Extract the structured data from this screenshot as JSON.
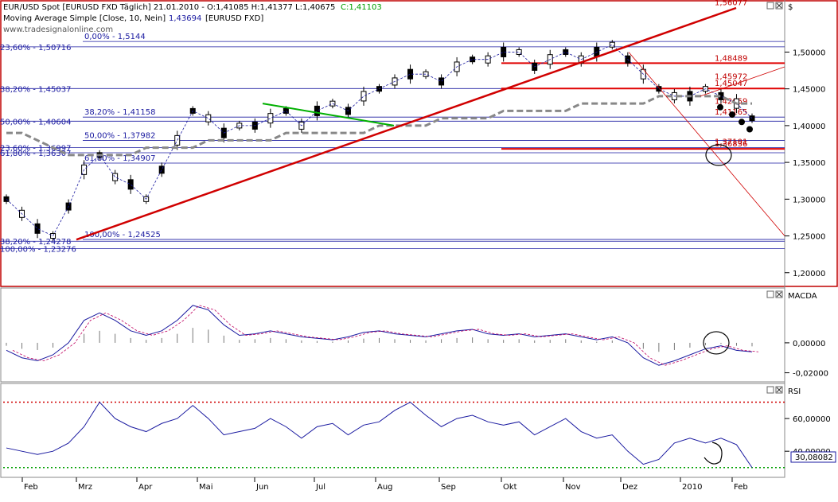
{
  "header": {
    "symbol_line": "EUR/USD Spot [EURUSD FXD  Täglich] 21.01.2010 - O:1,41085 H:1,41377 L:1,40675",
    "close_text": "C:1,41103",
    "ma_line": "Moving Average Simple [Close, 10, Nein]",
    "ma_value": "1,43694",
    "ma_symbol": "[EURUSD FXD]",
    "watermark": "www.tradesignalonline.com"
  },
  "price_axis": {
    "currency": "$",
    "ticks": [
      "1,50000",
      "1,45000",
      "1,40000",
      "1,35000",
      "1,30000",
      "1,25000",
      "1,20000"
    ]
  },
  "fib_left": [
    {
      "label": "23,60% - 1,50716",
      "y": 1.50716
    },
    {
      "label": "38,20% - 1,45037",
      "y": 1.45037
    },
    {
      "label": "50,00% - 1,40604",
      "y": 1.40604
    },
    {
      "label": "23,60% - 1,36997",
      "y": 1.36997
    },
    {
      "label": "61,80% - 1,36307",
      "y": 1.36307
    },
    {
      "label": "38,20% - 1,24278",
      "y": 1.24278
    },
    {
      "label": "100,00% - 1,23276",
      "y": 1.23276
    }
  ],
  "fib_mid": [
    {
      "label": "0,00% - 1,5144",
      "y": 1.5144
    },
    {
      "label": "38,20% - 1,41158",
      "y": 1.41158
    },
    {
      "label": "50,00% - 1,37982",
      "y": 1.37982
    },
    {
      "label": "61,80% - 1,34907",
      "y": 1.34907
    },
    {
      "label": "100,00% - 1,24525",
      "y": 1.24525
    }
  ],
  "fib_right": [
    {
      "label": "1,56077",
      "y": 1.56077
    },
    {
      "label": "1,48489",
      "y": 1.48489
    },
    {
      "label": "1,45972",
      "y": 1.45972
    },
    {
      "label": "1,45047",
      "y": 1.45047
    },
    {
      "label": "1,42659",
      "y": 1.42659
    },
    {
      "label": "1,41165",
      "y": 1.41165
    },
    {
      "label": "1,36836",
      "y": 1.36836
    },
    {
      "label": "1,37101",
      "y": 1.37101
    }
  ],
  "chart_data": [
    {
      "type": "line",
      "title": "EUR/USD Spot",
      "x_labels": [
        "Feb",
        "Mrz",
        "Apr",
        "Mai",
        "Jun",
        "Jul",
        "Aug",
        "Sep",
        "Okt",
        "Nov",
        "Dez",
        "2010",
        "Feb"
      ],
      "ylim": [
        1.18,
        1.58
      ],
      "series": [
        {
          "name": "EUR/USD Spot",
          "values": [
            1.3,
            1.28,
            1.26,
            1.25,
            1.29,
            1.34,
            1.36,
            1.33,
            1.32,
            1.3,
            1.34,
            1.38,
            1.42,
            1.41,
            1.39,
            1.4,
            1.4,
            1.41,
            1.42,
            1.4,
            1.42,
            1.43,
            1.42,
            1.44,
            1.45,
            1.46,
            1.47,
            1.47,
            1.46,
            1.48,
            1.49,
            1.49,
            1.5,
            1.5,
            1.48,
            1.49,
            1.5,
            1.49,
            1.5,
            1.51,
            1.49,
            1.47,
            1.45,
            1.44,
            1.44,
            1.45,
            1.44,
            1.43,
            1.41
          ]
        },
        {
          "name": "Moving Average Simple",
          "values": [
            1.39,
            1.39,
            1.38,
            1.37,
            1.36,
            1.36,
            1.36,
            1.36,
            1.36,
            1.37,
            1.37,
            1.37,
            1.37,
            1.38,
            1.38,
            1.38,
            1.38,
            1.38,
            1.39,
            1.39,
            1.39,
            1.39,
            1.39,
            1.39,
            1.4,
            1.4,
            1.4,
            1.4,
            1.41,
            1.41,
            1.41,
            1.41,
            1.42,
            1.42,
            1.42,
            1.42,
            1.42,
            1.43,
            1.43,
            1.43,
            1.43,
            1.43,
            1.44,
            1.44,
            1.44,
            1.44,
            1.44,
            1.43,
            1.43
          ]
        }
      ]
    },
    {
      "type": "line",
      "title": "MACDA",
      "ylim": [
        -0.025,
        0.035
      ],
      "y_ticks": [
        "0,00000",
        "-0,02000"
      ],
      "series": [
        {
          "name": "MACD",
          "values": [
            -0.005,
            -0.01,
            -0.012,
            -0.008,
            0.0,
            0.015,
            0.02,
            0.015,
            0.008,
            0.005,
            0.008,
            0.015,
            0.025,
            0.022,
            0.012,
            0.005,
            0.006,
            0.008,
            0.006,
            0.004,
            0.003,
            0.002,
            0.004,
            0.007,
            0.008,
            0.006,
            0.005,
            0.004,
            0.006,
            0.008,
            0.009,
            0.006,
            0.005,
            0.006,
            0.004,
            0.005,
            0.006,
            0.004,
            0.002,
            0.004,
            0.0,
            -0.01,
            -0.015,
            -0.012,
            -0.008,
            -0.004,
            -0.002,
            -0.005,
            -0.006
          ]
        }
      ]
    },
    {
      "type": "line",
      "title": "RSI",
      "ylim": [
        25,
        80
      ],
      "y_ticks": [
        "60,00000",
        "40,00000"
      ],
      "current_value": "30,08082",
      "series": [
        {
          "name": "RSI",
          "values": [
            42,
            40,
            38,
            40,
            45,
            55,
            70,
            60,
            55,
            52,
            57,
            60,
            68,
            60,
            50,
            52,
            54,
            60,
            55,
            48,
            55,
            57,
            50,
            56,
            58,
            65,
            70,
            62,
            55,
            60,
            62,
            58,
            56,
            58,
            50,
            55,
            60,
            52,
            48,
            50,
            40,
            32,
            35,
            45,
            48,
            45,
            48,
            44,
            30
          ]
        }
      ]
    }
  ]
}
